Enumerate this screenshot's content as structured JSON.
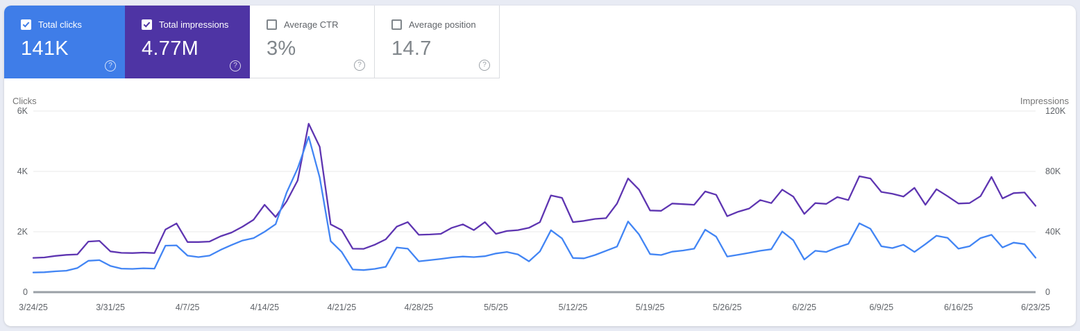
{
  "colors": {
    "page_bg": "#e8ebf4",
    "clicks_card_bg": "#3f7de8",
    "impressions_card_bg": "#4e34a4",
    "clicks_line": "#4285f4",
    "impressions_line": "#5e35b1",
    "gridline": "#e8e8e8",
    "axis_line": "#9aa0a6"
  },
  "cards": [
    {
      "id": "total-clicks",
      "label": "Total clicks",
      "value": "141K",
      "checked": true,
      "color": "#3f7de8"
    },
    {
      "id": "total-impressions",
      "label": "Total impressions",
      "value": "4.77M",
      "checked": true,
      "color": "#4e34a4"
    },
    {
      "id": "average-ctr",
      "label": "Average CTR",
      "value": "3%",
      "checked": false,
      "color": "#ffffff"
    },
    {
      "id": "average-position",
      "label": "Average position",
      "value": "14.7",
      "checked": false,
      "color": "#ffffff"
    }
  ],
  "help_glyph": "?",
  "chart_data": {
    "type": "line",
    "left_axis": {
      "title": "Clicks",
      "max": 6000,
      "ticks": [
        {
          "value": 6000,
          "label": "6K"
        },
        {
          "value": 4000,
          "label": "4K"
        },
        {
          "value": 2000,
          "label": "2K"
        },
        {
          "value": 0,
          "label": "0"
        }
      ]
    },
    "right_axis": {
      "title": "Impressions",
      "max": 120000,
      "ticks": [
        {
          "value": 120000,
          "label": "120K"
        },
        {
          "value": 80000,
          "label": "80K"
        },
        {
          "value": 40000,
          "label": "40K"
        },
        {
          "value": 0,
          "label": "0"
        }
      ]
    },
    "x_tick_labels": [
      "3/24/25",
      "3/31/25",
      "4/7/25",
      "4/14/25",
      "4/21/25",
      "4/28/25",
      "5/5/25",
      "5/12/25",
      "5/19/25",
      "5/26/25",
      "6/2/25",
      "6/9/25",
      "6/16/25",
      "6/23/25"
    ],
    "grid": true,
    "legend_position": "none",
    "dates": [
      "3/24/25",
      "3/25/25",
      "3/26/25",
      "3/27/25",
      "3/28/25",
      "3/29/25",
      "3/30/25",
      "3/31/25",
      "4/1/25",
      "4/2/25",
      "4/3/25",
      "4/4/25",
      "4/5/25",
      "4/6/25",
      "4/7/25",
      "4/8/25",
      "4/9/25",
      "4/10/25",
      "4/11/25",
      "4/12/25",
      "4/13/25",
      "4/14/25",
      "4/15/25",
      "4/16/25",
      "4/17/25",
      "4/18/25",
      "4/19/25",
      "4/20/25",
      "4/21/25",
      "4/22/25",
      "4/23/25",
      "4/24/25",
      "4/25/25",
      "4/26/25",
      "4/27/25",
      "4/28/25",
      "4/29/25",
      "4/30/25",
      "5/1/25",
      "5/2/25",
      "5/3/25",
      "5/4/25",
      "5/5/25",
      "5/6/25",
      "5/7/25",
      "5/8/25",
      "5/9/25",
      "5/10/25",
      "5/11/25",
      "5/12/25",
      "5/13/25",
      "5/14/25",
      "5/15/25",
      "5/16/25",
      "5/17/25",
      "5/18/25",
      "5/19/25",
      "5/20/25",
      "5/21/25",
      "5/22/25",
      "5/23/25",
      "5/24/25",
      "5/25/25",
      "5/26/25",
      "5/27/25",
      "5/28/25",
      "5/29/25",
      "5/30/25",
      "5/31/25",
      "6/1/25",
      "6/2/25",
      "6/3/25",
      "6/4/25",
      "6/5/25",
      "6/6/25",
      "6/7/25",
      "6/8/25",
      "6/9/25",
      "6/10/25",
      "6/11/25",
      "6/12/25",
      "6/13/25",
      "6/14/25",
      "6/15/25",
      "6/16/25",
      "6/17/25",
      "6/18/25",
      "6/19/25",
      "6/20/25",
      "6/21/25",
      "6/22/25",
      "6/23/25"
    ],
    "series": [
      {
        "name": "Impressions",
        "axis": "right",
        "color": "#5e35b1",
        "values": [
          22700,
          23000,
          24000,
          24700,
          25000,
          33500,
          34000,
          27000,
          26000,
          25900,
          26200,
          25900,
          41500,
          45500,
          33200,
          33200,
          33500,
          37000,
          39500,
          43400,
          48000,
          57900,
          49800,
          60200,
          74000,
          111600,
          96300,
          44900,
          41100,
          28800,
          28700,
          31400,
          35000,
          43400,
          46400,
          38000,
          38200,
          38600,
          42600,
          44900,
          41100,
          46400,
          38600,
          40500,
          41100,
          42600,
          46400,
          64100,
          62500,
          46400,
          47200,
          48500,
          49000,
          58700,
          75300,
          67900,
          54100,
          53900,
          58700,
          58300,
          57900,
          66700,
          64500,
          50300,
          53300,
          55400,
          61000,
          59000,
          67900,
          63300,
          51800,
          59000,
          58500,
          63000,
          61000,
          76800,
          75300,
          66400,
          65200,
          63300,
          69100,
          57900,
          68200,
          63600,
          58700,
          59000,
          63600,
          76300,
          62100,
          65600,
          66000,
          57200
        ]
      },
      {
        "name": "Clicks",
        "axis": "left",
        "color": "#4285f4",
        "values": [
          650,
          660,
          690,
          710,
          800,
          1040,
          1060,
          870,
          780,
          770,
          790,
          780,
          1540,
          1550,
          1210,
          1160,
          1210,
          1400,
          1560,
          1710,
          1790,
          2000,
          2250,
          3300,
          4100,
          5150,
          3800,
          1690,
          1330,
          750,
          730,
          770,
          840,
          1480,
          1440,
          1020,
          1060,
          1100,
          1150,
          1180,
          1160,
          1190,
          1280,
          1330,
          1250,
          1020,
          1350,
          2050,
          1780,
          1130,
          1120,
          1230,
          1370,
          1510,
          2340,
          1910,
          1260,
          1230,
          1340,
          1380,
          1440,
          2070,
          1840,
          1180,
          1240,
          1300,
          1370,
          1420,
          2010,
          1720,
          1080,
          1370,
          1330,
          1480,
          1600,
          2280,
          2100,
          1520,
          1460,
          1570,
          1330,
          1590,
          1870,
          1800,
          1440,
          1520,
          1790,
          1900,
          1480,
          1640,
          1590,
          1140
        ]
      }
    ]
  }
}
